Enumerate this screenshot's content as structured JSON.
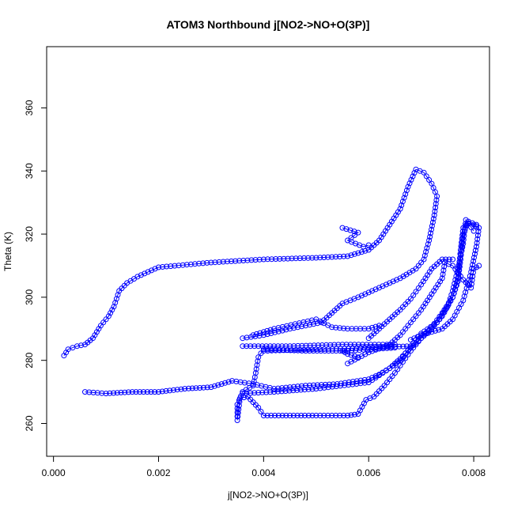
{
  "chart_data": {
    "type": "scatter",
    "title": "ATOM3 Northbound j[NO2->NO+O(3P)]",
    "xlabel": "j[NO2->NO+O(3P)]",
    "ylabel": "Theta (K)",
    "xlim": [
      -0.00013,
      0.0083
    ],
    "ylim": [
      249.6,
      379.4
    ],
    "x_ticks": [
      0.0,
      0.002,
      0.004,
      0.006,
      0.008
    ],
    "x_tick_labels": [
      "0.000",
      "0.002",
      "0.004",
      "0.006",
      "0.008"
    ],
    "y_ticks": [
      260,
      280,
      300,
      320,
      340,
      360
    ],
    "y_tick_labels": [
      "260",
      "280",
      "300",
      "320",
      "340",
      "360"
    ],
    "grid": false,
    "marker": "open-circle",
    "color": "#0000ff",
    "series": [
      {
        "segments": [
          [
            [
              0.0002,
              281.5
            ],
            [
              0.00028,
              283.5
            ],
            [
              0.00045,
              284.5
            ],
            [
              0.0006,
              285.0
            ],
            [
              0.00075,
              287.0
            ],
            [
              0.0009,
              291.0
            ],
            [
              0.00105,
              294.0
            ],
            [
              0.00115,
              297.0
            ],
            [
              0.00125,
              302.0
            ],
            [
              0.0014,
              304.5
            ],
            [
              0.0016,
              306.5
            ],
            [
              0.002,
              309.5
            ],
            [
              0.003,
              311.0
            ],
            [
              0.004,
              312.0
            ],
            [
              0.005,
              312.5
            ],
            [
              0.0056,
              313.0
            ],
            [
              0.006,
              315.0
            ],
            [
              0.0062,
              318.0
            ],
            [
              0.0064,
              323.0
            ],
            [
              0.0066,
              328.0
            ],
            [
              0.00675,
              335.0
            ],
            [
              0.0069,
              340.5
            ],
            [
              0.00705,
              339.5
            ],
            [
              0.0072,
              336.0
            ],
            [
              0.0073,
              332.0
            ],
            [
              0.00725,
              326.0
            ],
            [
              0.00715,
              318.0
            ],
            [
              0.00705,
              312.0
            ],
            [
              0.0069,
              309.0
            ],
            [
              0.0066,
              306.0
            ],
            [
              0.0062,
              303.0
            ],
            [
              0.0058,
              300.0
            ],
            [
              0.0055,
              298.0
            ],
            [
              0.0053,
              295.0
            ],
            [
              0.0051,
              292.0
            ],
            [
              0.0045,
              290.0
            ],
            [
              0.004,
              288.0
            ],
            [
              0.0036,
              287.0
            ]
          ],
          [
            [
              0.0036,
              284.5
            ],
            [
              0.0045,
              284.5
            ],
            [
              0.0055,
              285.0
            ],
            [
              0.0065,
              285.0
            ]
          ],
          [
            [
              0.0065,
              284.0
            ],
            [
              0.0056,
              283.0
            ],
            [
              0.0048,
              283.0
            ],
            [
              0.004,
              283.5
            ],
            [
              0.0039,
              281.0
            ],
            [
              0.00385,
              276.0
            ],
            [
              0.0038,
              272.0
            ],
            [
              0.0036,
              270.0
            ],
            [
              0.0035,
              266.0
            ],
            [
              0.0035,
              261.0
            ],
            [
              0.00355,
              268.0
            ],
            [
              0.0037,
              268.5
            ],
            [
              0.0039,
              265.0
            ],
            [
              0.004,
              262.5
            ],
            [
              0.0045,
              262.5
            ],
            [
              0.005,
              262.5
            ],
            [
              0.0056,
              262.5
            ],
            [
              0.0058,
              263.0
            ],
            [
              0.00595,
              267.5
            ],
            [
              0.0061,
              268.5
            ],
            [
              0.0063,
              272.0
            ],
            [
              0.0065,
              276.0
            ],
            [
              0.00665,
              279.5
            ],
            [
              0.0068,
              283.0
            ],
            [
              0.007,
              287.0
            ],
            [
              0.0072,
              290.0
            ],
            [
              0.0074,
              294.0
            ],
            [
              0.0076,
              300.0
            ],
            [
              0.0077,
              306.0
            ],
            [
              0.00775,
              315.0
            ],
            [
              0.0078,
              322.0
            ],
            [
              0.0079,
              323.5
            ],
            [
              0.008,
              323.0
            ],
            [
              0.0081,
              322.0
            ],
            [
              0.00805,
              316.0
            ],
            [
              0.00795,
              308.0
            ],
            [
              0.0078,
              299.0
            ],
            [
              0.0076,
              293.0
            ],
            [
              0.0074,
              290.0
            ],
            [
              0.0072,
              289.0
            ],
            [
              0.007,
              288.0
            ],
            [
              0.0068,
              286.5
            ]
          ],
          [
            [
              0.0068,
              284.5
            ],
            [
              0.006,
              284.0
            ],
            [
              0.005,
              283.5
            ],
            [
              0.004,
              283.0
            ]
          ],
          [
            [
              0.0006,
              270.0
            ],
            [
              0.001,
              269.5
            ],
            [
              0.0015,
              270.0
            ],
            [
              0.002,
              270.0
            ],
            [
              0.0025,
              271.0
            ],
            [
              0.003,
              271.5
            ],
            [
              0.0034,
              273.5
            ],
            [
              0.0038,
              272.5
            ],
            [
              0.0042,
              271.0
            ],
            [
              0.0048,
              272.0
            ],
            [
              0.0054,
              272.5
            ],
            [
              0.006,
              274.0
            ],
            [
              0.0062,
              275.5
            ],
            [
              0.0064,
              277.5
            ],
            [
              0.0066,
              280.5
            ],
            [
              0.0068,
              284.0
            ],
            [
              0.007,
              287.0
            ],
            [
              0.0072,
              290.5
            ],
            [
              0.0074,
              295.0
            ],
            [
              0.0076,
              300.0
            ],
            [
              0.0077,
              305.0
            ],
            [
              0.00775,
              312.0
            ],
            [
              0.0078,
              320.0
            ],
            [
              0.0079,
              324.0
            ],
            [
              0.00805,
              323.0
            ]
          ],
          [
            [
              0.0036,
              269.5
            ],
            [
              0.0042,
              270.0
            ],
            [
              0.005,
              271.0
            ],
            [
              0.006,
              273.0
            ],
            [
              0.0064,
              277.5
            ],
            [
              0.0066,
              280.0
            ],
            [
              0.0068,
              284.5
            ],
            [
              0.007,
              288.5
            ],
            [
              0.0073,
              292.0
            ],
            [
              0.0075,
              297.0
            ],
            [
              0.0076,
              302.0
            ],
            [
              0.0077,
              309.0
            ],
            [
              0.0078,
              317.0
            ],
            [
              0.00785,
              324.5
            ],
            [
              0.008,
              321.0
            ]
          ],
          [
            [
              0.0056,
              279.0
            ],
            [
              0.006,
              282.5
            ],
            [
              0.0064,
              285.0
            ],
            [
              0.0066,
              288.0
            ],
            [
              0.0068,
              292.0
            ],
            [
              0.007,
              296.0
            ],
            [
              0.0072,
              301.0
            ],
            [
              0.0074,
              306.0
            ],
            [
              0.00745,
              311.0
            ],
            [
              0.0076,
              310.0
            ],
            [
              0.0078,
              305.5
            ],
            [
              0.00795,
              303.0
            ],
            [
              0.008,
              309.0
            ],
            [
              0.0081,
              310.0
            ]
          ],
          [
            [
              0.006,
              287.0
            ],
            [
              0.0062,
              290.0
            ],
            [
              0.0064,
              293.0
            ],
            [
              0.0066,
              296.0
            ],
            [
              0.0068,
              299.5
            ],
            [
              0.007,
              304.0
            ],
            [
              0.0072,
              309.0
            ],
            [
              0.0074,
              312.0
            ],
            [
              0.0076,
              312.0
            ]
          ],
          [
            [
              0.0055,
              322.0
            ],
            [
              0.0058,
              320.5
            ],
            [
              0.0056,
              318.0
            ],
            [
              0.0059,
              316.0
            ],
            [
              0.006,
              316.5
            ]
          ],
          [
            [
              0.0038,
              288.0
            ],
            [
              0.0042,
              290.0
            ],
            [
              0.0046,
              291.5
            ],
            [
              0.005,
              293.0
            ],
            [
              0.0053,
              290.5
            ],
            [
              0.0056,
              290.0
            ],
            [
              0.006,
              290.0
            ],
            [
              0.0062,
              291.0
            ]
          ],
          [
            [
              0.0055,
              283.0
            ],
            [
              0.0056,
              282.0
            ],
            [
              0.0058,
              281.0
            ]
          ]
        ]
      }
    ]
  }
}
